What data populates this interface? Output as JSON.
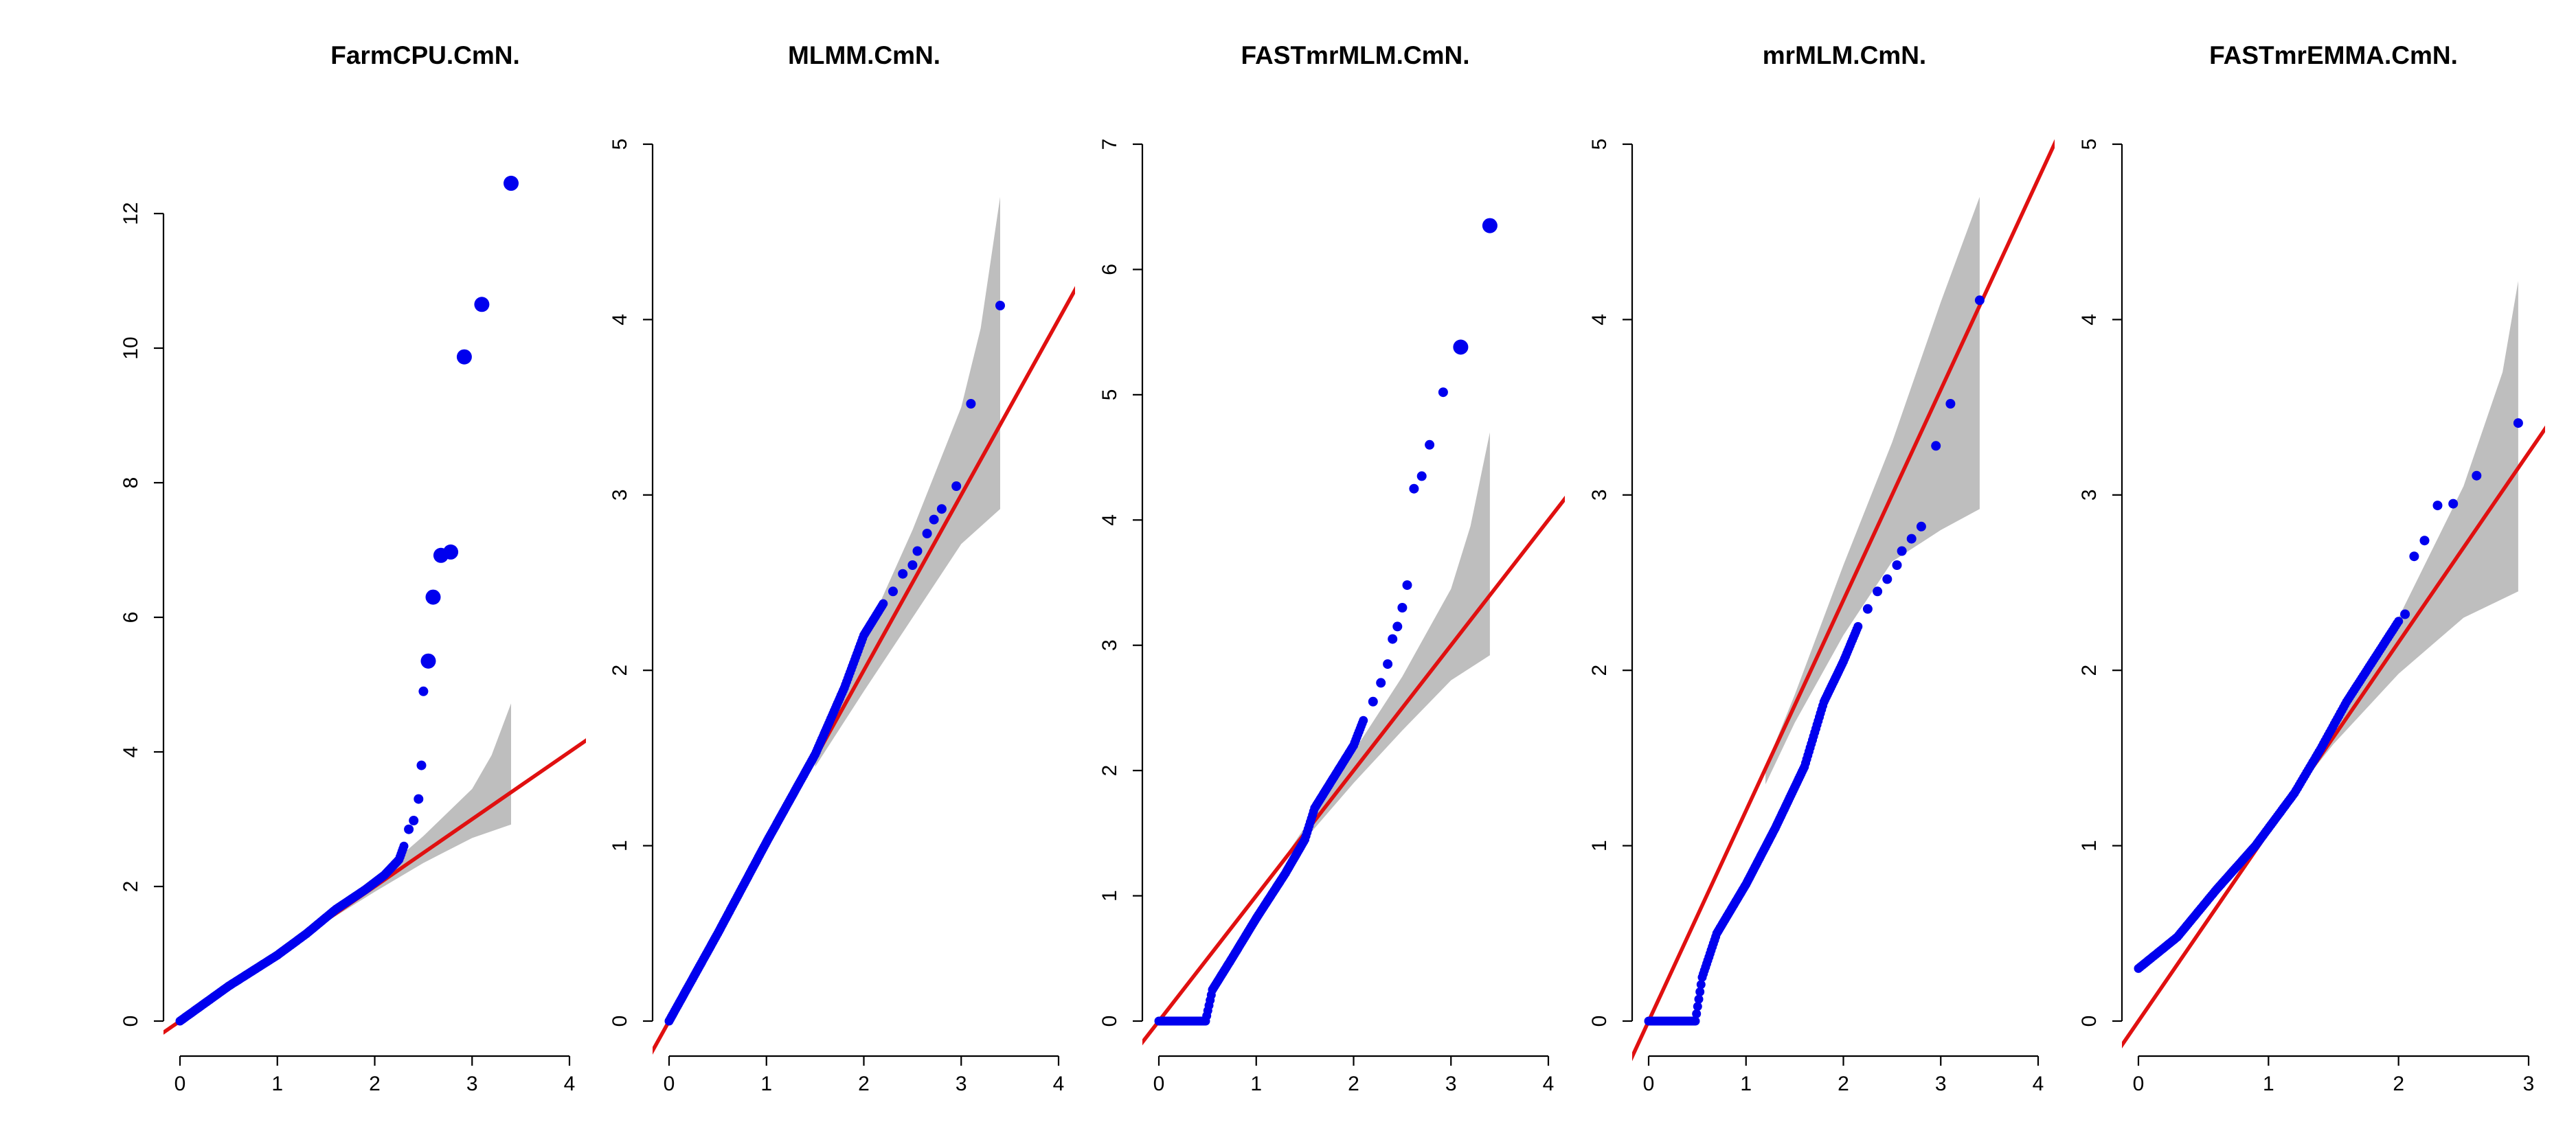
{
  "colors": {
    "points": "#0000ee",
    "ref_line": "#e01010",
    "band": "#bebebe",
    "axis": "#000000"
  },
  "chart_data": [
    {
      "type": "scatter",
      "title": "FarmCPU.CmN.",
      "xlim": [
        0,
        4
      ],
      "ylim": [
        0,
        12.5
      ],
      "x_ticks": [
        "0",
        "1",
        "2",
        "3",
        "4"
      ],
      "y_ticks": [
        "0",
        "2",
        "4",
        "6",
        "8",
        "10",
        "12"
      ],
      "ref_line": {
        "slope": 1,
        "intercept": 0
      },
      "ci_band": {
        "upper": [
          [
            1.0,
            1.0
          ],
          [
            1.5,
            1.55
          ],
          [
            2.0,
            2.12
          ],
          [
            2.5,
            2.75
          ],
          [
            3.0,
            3.45
          ],
          [
            3.2,
            3.95
          ],
          [
            3.4,
            4.72
          ]
        ],
        "lower": [
          [
            1.0,
            1.0
          ],
          [
            1.5,
            1.47
          ],
          [
            2.0,
            1.92
          ],
          [
            2.5,
            2.35
          ],
          [
            3.0,
            2.72
          ],
          [
            3.4,
            2.92
          ]
        ]
      },
      "bulk": [
        [
          0.0,
          0.0
        ],
        [
          0.5,
          0.52
        ],
        [
          1.0,
          0.98
        ],
        [
          1.3,
          1.3
        ],
        [
          1.6,
          1.66
        ],
        [
          1.9,
          1.95
        ],
        [
          2.1,
          2.17
        ],
        [
          2.25,
          2.4
        ],
        [
          2.3,
          2.6
        ]
      ],
      "points": [
        [
          2.35,
          2.85
        ],
        [
          2.4,
          2.98
        ],
        [
          2.45,
          3.3
        ],
        [
          2.48,
          3.8
        ],
        [
          2.5,
          4.9
        ],
        [
          2.55,
          5.35
        ],
        [
          2.6,
          6.3
        ],
        [
          2.68,
          6.92
        ],
        [
          2.78,
          6.97
        ],
        [
          2.92,
          9.87
        ],
        [
          3.1,
          10.65
        ],
        [
          3.4,
          12.45
        ]
      ],
      "big_points": [
        [
          2.55,
          5.35
        ],
        [
          2.6,
          6.3
        ],
        [
          2.68,
          6.92
        ],
        [
          2.78,
          6.97
        ],
        [
          2.92,
          9.87
        ],
        [
          3.1,
          10.65
        ],
        [
          3.4,
          12.45
        ]
      ]
    },
    {
      "type": "scatter",
      "title": "MLMM.CmN.",
      "xlim": [
        0,
        4
      ],
      "ylim": [
        0,
        5
      ],
      "x_ticks": [
        "0",
        "1",
        "2",
        "3",
        "4"
      ],
      "y_ticks": [
        "0",
        "1",
        "2",
        "3",
        "4",
        "5"
      ],
      "ref_line": {
        "slope": 1,
        "intercept": 0
      },
      "ci_band": {
        "upper": [
          [
            1.5,
            1.55
          ],
          [
            2.0,
            2.18
          ],
          [
            2.5,
            2.8
          ],
          [
            3.0,
            3.5
          ],
          [
            3.2,
            3.95
          ],
          [
            3.4,
            4.7
          ]
        ],
        "lower": [
          [
            1.5,
            1.45
          ],
          [
            2.0,
            1.88
          ],
          [
            2.5,
            2.3
          ],
          [
            3.0,
            2.72
          ],
          [
            3.4,
            2.92
          ]
        ]
      },
      "bulk": [
        [
          0.0,
          0.0
        ],
        [
          0.5,
          0.5
        ],
        [
          1.0,
          1.02
        ],
        [
          1.5,
          1.52
        ],
        [
          1.8,
          1.9
        ],
        [
          2.0,
          2.2
        ],
        [
          2.2,
          2.38
        ]
      ],
      "points": [
        [
          2.3,
          2.45
        ],
        [
          2.4,
          2.55
        ],
        [
          2.5,
          2.6
        ],
        [
          2.55,
          2.68
        ],
        [
          2.65,
          2.78
        ],
        [
          2.72,
          2.86
        ],
        [
          2.8,
          2.92
        ],
        [
          2.95,
          3.05
        ],
        [
          3.1,
          3.52
        ],
        [
          3.4,
          4.08
        ]
      ],
      "big_points": []
    },
    {
      "type": "scatter",
      "title": "FASTmrMLM.CmN.",
      "xlim": [
        0,
        4
      ],
      "ylim": [
        0,
        7
      ],
      "x_ticks": [
        "0",
        "1",
        "2",
        "3",
        "4"
      ],
      "y_ticks": [
        "0",
        "1",
        "2",
        "3",
        "4",
        "5",
        "6",
        "7"
      ],
      "ref_line": {
        "slope": 1,
        "intercept": 0
      },
      "ci_band": {
        "upper": [
          [
            1.2,
            1.2
          ],
          [
            1.5,
            1.55
          ],
          [
            2.0,
            2.15
          ],
          [
            2.5,
            2.75
          ],
          [
            3.0,
            3.45
          ],
          [
            3.2,
            3.95
          ],
          [
            3.4,
            4.7
          ]
        ],
        "lower": [
          [
            1.2,
            1.2
          ],
          [
            1.5,
            1.45
          ],
          [
            2.0,
            1.9
          ],
          [
            2.5,
            2.32
          ],
          [
            3.0,
            2.72
          ],
          [
            3.4,
            2.92
          ]
        ]
      },
      "bulk": [
        [
          0.0,
          0.0
        ],
        [
          0.48,
          0.0
        ],
        [
          0.55,
          0.25
        ],
        [
          0.75,
          0.5
        ],
        [
          1.0,
          0.82
        ],
        [
          1.3,
          1.18
        ],
        [
          1.5,
          1.45
        ],
        [
          1.6,
          1.7
        ],
        [
          1.8,
          1.95
        ],
        [
          2.0,
          2.2
        ],
        [
          2.1,
          2.4
        ]
      ],
      "points": [
        [
          2.2,
          2.55
        ],
        [
          2.28,
          2.7
        ],
        [
          2.35,
          2.85
        ],
        [
          2.4,
          3.05
        ],
        [
          2.45,
          3.15
        ],
        [
          2.5,
          3.3
        ],
        [
          2.55,
          3.48
        ],
        [
          2.62,
          4.25
        ],
        [
          2.7,
          4.35
        ],
        [
          2.78,
          4.6
        ],
        [
          2.92,
          5.02
        ],
        [
          3.1,
          5.38
        ],
        [
          3.4,
          6.35
        ]
      ],
      "big_points": [
        [
          3.1,
          5.38
        ],
        [
          3.4,
          6.35
        ]
      ]
    },
    {
      "type": "scatter",
      "title": "mrMLM.CmN.",
      "xlim": [
        0,
        4
      ],
      "ylim": [
        0,
        5
      ],
      "x_ticks": [
        "0",
        "1",
        "2",
        "3",
        "4"
      ],
      "y_ticks": [
        "0",
        "1",
        "2",
        "3",
        "4",
        "5"
      ],
      "ref_line": {
        "slope": 1.2,
        "intercept": 0
      },
      "ci_band": {
        "upper": [
          [
            1.2,
            1.45
          ],
          [
            1.5,
            1.86
          ],
          [
            2.0,
            2.6
          ],
          [
            2.5,
            3.3
          ],
          [
            3.0,
            4.1
          ],
          [
            3.2,
            4.4
          ],
          [
            3.4,
            4.7
          ]
        ],
        "lower": [
          [
            1.2,
            1.35
          ],
          [
            1.5,
            1.7
          ],
          [
            2.0,
            2.2
          ],
          [
            2.5,
            2.62
          ],
          [
            3.0,
            2.8
          ],
          [
            3.4,
            2.92
          ]
        ]
      },
      "bulk": [
        [
          0.0,
          0.0
        ],
        [
          0.48,
          0.0
        ],
        [
          0.55,
          0.25
        ],
        [
          0.7,
          0.5
        ],
        [
          1.0,
          0.78
        ],
        [
          1.3,
          1.1
        ],
        [
          1.6,
          1.45
        ],
        [
          1.8,
          1.82
        ],
        [
          2.0,
          2.05
        ],
        [
          2.15,
          2.25
        ]
      ],
      "points": [
        [
          2.25,
          2.35
        ],
        [
          2.35,
          2.45
        ],
        [
          2.45,
          2.52
        ],
        [
          2.55,
          2.6
        ],
        [
          2.6,
          2.68
        ],
        [
          2.7,
          2.75
        ],
        [
          2.8,
          2.82
        ],
        [
          2.95,
          3.28
        ],
        [
          3.1,
          3.52
        ],
        [
          3.4,
          4.11
        ]
      ],
      "big_points": []
    },
    {
      "type": "scatter",
      "title": "FASTmrEMMA.CmN.",
      "xlim": [
        0,
        3
      ],
      "ylim": [
        0,
        5
      ],
      "x_ticks": [
        "0",
        "1",
        "2",
        "3"
      ],
      "y_ticks": [
        "0",
        "1",
        "2",
        "3",
        "4",
        "5"
      ],
      "ref_line": {
        "slope": 1.08,
        "intercept": 0
      },
      "ci_band": {
        "upper": [
          [
            1.2,
            1.3
          ],
          [
            1.5,
            1.64
          ],
          [
            2.0,
            2.3
          ],
          [
            2.5,
            3.05
          ],
          [
            2.8,
            3.7
          ],
          [
            2.92,
            4.22
          ]
        ],
        "lower": [
          [
            1.2,
            1.3
          ],
          [
            1.5,
            1.58
          ],
          [
            2.0,
            1.98
          ],
          [
            2.5,
            2.3
          ],
          [
            2.92,
            2.45
          ]
        ]
      },
      "bulk": [
        [
          0.0,
          0.3
        ],
        [
          0.3,
          0.48
        ],
        [
          0.6,
          0.75
        ],
        [
          0.9,
          1.0
        ],
        [
          1.2,
          1.3
        ],
        [
          1.4,
          1.55
        ],
        [
          1.6,
          1.82
        ],
        [
          1.8,
          2.05
        ],
        [
          2.0,
          2.28
        ]
      ],
      "points": [
        [
          2.05,
          2.32
        ],
        [
          2.12,
          2.65
        ],
        [
          2.2,
          2.74
        ],
        [
          2.3,
          2.94
        ],
        [
          2.42,
          2.95
        ],
        [
          2.6,
          3.11
        ],
        [
          2.92,
          3.41
        ]
      ],
      "big_points": []
    }
  ]
}
